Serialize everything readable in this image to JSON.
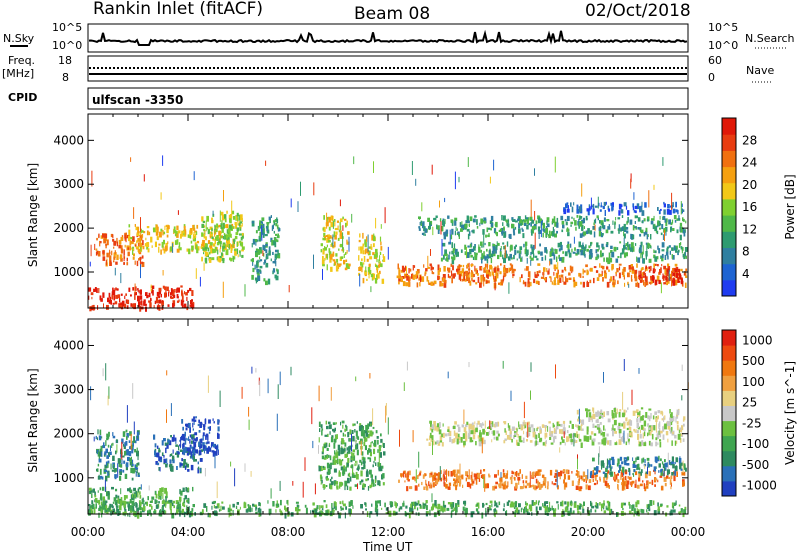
{
  "header": {
    "station": "Rankin Inlet (fitACF)",
    "beam": "Beam 08",
    "date": "02/Oct/2018"
  },
  "status_panels": {
    "nsky_label": "N.Sky",
    "nsky_ticks": [
      "10^5",
      "10^0"
    ],
    "nsearch_label": "N.Search",
    "nsearch_ticks": [
      "10^5",
      "10^0"
    ],
    "freq_label": "Freq.",
    "freq_unit": "[MHz]",
    "freq_ticks": [
      "18",
      "8"
    ],
    "nave_label": "Nave",
    "nave_ticks": [
      "60",
      "0"
    ],
    "cpid_label": "CPID",
    "cpid_value": "ulfscan -3350"
  },
  "x_axis": {
    "label": "Time UT",
    "ticks": [
      "00:00",
      "04:00",
      "08:00",
      "12:00",
      "16:00",
      "20:00",
      "00:00"
    ]
  },
  "chart_data": [
    {
      "type": "heatmap",
      "quantity": "Power",
      "ylabel": "Slant Range [km]",
      "yticks": [
        "1000",
        "2000",
        "3000",
        "4000"
      ],
      "ylim": [
        180,
        4600
      ],
      "xlim_hours": [
        0,
        24
      ],
      "colorbar": {
        "label": "Power [dB]",
        "ticks": [
          "4",
          "8",
          "12",
          "16",
          "20",
          "24",
          "28"
        ],
        "colors": [
          "#1f3cf0",
          "#1e64d2",
          "#2f7fa0",
          "#2e9b70",
          "#4fb848",
          "#7fd030",
          "#f2c818",
          "#f5a010",
          "#f07010",
          "#e83c10",
          "#e01808"
        ]
      },
      "bands": [
        {
          "t0": 0.0,
          "t1": 4.2,
          "r0": 200,
          "r1": 700,
          "level": 10
        },
        {
          "t0": 0.3,
          "t1": 2.2,
          "r0": 1200,
          "r1": 1900,
          "level": 8
        },
        {
          "t0": 1.6,
          "t1": 5.8,
          "r0": 1500,
          "r1": 2100,
          "level": 6
        },
        {
          "t0": 4.5,
          "t1": 6.2,
          "r0": 1300,
          "r1": 2400,
          "level": 5
        },
        {
          "t0": 6.5,
          "t1": 7.6,
          "r0": 800,
          "r1": 2300,
          "level": 3
        },
        {
          "t0": 9.3,
          "t1": 10.4,
          "r0": 1100,
          "r1": 2300,
          "level": 6
        },
        {
          "t0": 10.8,
          "t1": 11.8,
          "r0": 800,
          "r1": 1900,
          "level": 6
        },
        {
          "t0": 12.3,
          "t1": 23.9,
          "r0": 750,
          "r1": 1200,
          "level": 8
        },
        {
          "t0": 14.0,
          "t1": 23.9,
          "r0": 1300,
          "r1": 1700,
          "level": 3
        },
        {
          "t0": 13.2,
          "t1": 23.9,
          "r0": 1850,
          "r1": 2300,
          "level": 3
        },
        {
          "t0": 19.0,
          "t1": 23.9,
          "r0": 2400,
          "r1": 2600,
          "level": 1
        },
        {
          "t0": 22.0,
          "t1": 23.9,
          "r0": 800,
          "r1": 1150,
          "level": 10
        }
      ]
    },
    {
      "type": "heatmap",
      "quantity": "Velocity",
      "ylabel": "Slant Range [km]",
      "yticks": [
        "1000",
        "2000",
        "3000",
        "4000"
      ],
      "ylim": [
        180,
        4600
      ],
      "xlim_hours": [
        0,
        24
      ],
      "colorbar": {
        "label": "Velocity [m s^-1]",
        "ticks": [
          "1000",
          "500",
          "100",
          "25",
          "-25",
          "-100",
          "-500",
          "-1000"
        ],
        "colors": [
          "#2040c0",
          "#2a70b8",
          "#2e8a60",
          "#3fa550",
          "#6cc040",
          "#c8c8c8",
          "#e8d080",
          "#f0a040",
          "#f07810",
          "#ee4a10",
          "#e02010"
        ]
      },
      "bands": [
        {
          "t0": 0.0,
          "t1": 4.2,
          "r0": 200,
          "r1": 800,
          "level": 3
        },
        {
          "t0": 0.3,
          "t1": 2.0,
          "r0": 1000,
          "r1": 2100,
          "level": 2
        },
        {
          "t0": 2.6,
          "t1": 4.6,
          "r0": 1200,
          "r1": 2000,
          "level": 1
        },
        {
          "t0": 3.6,
          "t1": 5.2,
          "r0": 1600,
          "r1": 2400,
          "level": 0
        },
        {
          "t0": 9.2,
          "t1": 11.8,
          "r0": 800,
          "r1": 2300,
          "level": 3
        },
        {
          "t0": 12.4,
          "t1": 23.9,
          "r0": 800,
          "r1": 1200,
          "level": 8
        },
        {
          "t0": 13.5,
          "t1": 23.9,
          "r0": 1800,
          "r1": 2300,
          "level": 5
        },
        {
          "t0": 19.5,
          "t1": 23.9,
          "r0": 2300,
          "r1": 2600,
          "level": 5
        },
        {
          "t0": 20.0,
          "t1": 23.9,
          "r0": 1100,
          "r1": 1500,
          "level": 2
        },
        {
          "t0": 0.0,
          "t1": 23.9,
          "r0": 200,
          "r1": 500,
          "level": 3
        }
      ]
    }
  ]
}
